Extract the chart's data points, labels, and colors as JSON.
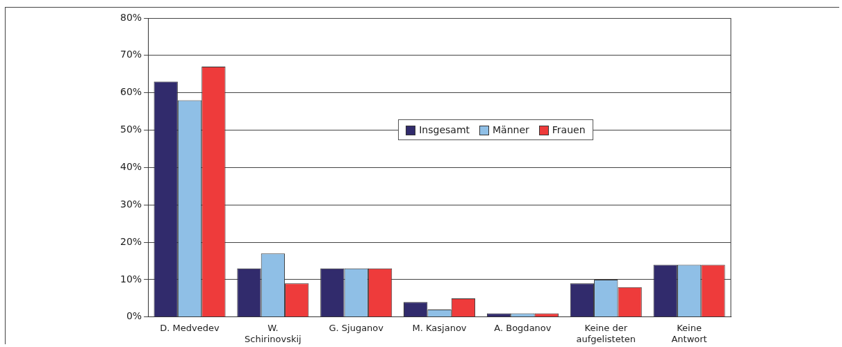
{
  "chart_data": {
    "type": "bar",
    "categories": [
      "D. Medvedev",
      "W.\nSchirinovskij",
      "G. Sjuganov",
      "M. Kasjanov",
      "A. Bogdanov",
      "Keine der\naufgelisteten",
      "Keine\nAntwort"
    ],
    "series": [
      {
        "name": "Insgesamt",
        "color": "#312b6c",
        "values": [
          63,
          13,
          13,
          4,
          1,
          9,
          14
        ]
      },
      {
        "name": "Männer",
        "color": "#8fbfe6",
        "values": [
          58,
          17,
          13,
          2,
          1,
          10,
          14
        ]
      },
      {
        "name": "Frauen",
        "color": "#ee3b3b",
        "values": [
          67,
          9,
          13,
          5,
          1,
          8,
          14
        ]
      }
    ],
    "ylim": [
      0,
      80
    ],
    "yticks": [
      {
        "value": 0,
        "label": "0%"
      },
      {
        "value": 10,
        "label": "10%"
      },
      {
        "value": 20,
        "label": "20%"
      },
      {
        "value": 30,
        "label": "30%"
      },
      {
        "value": 40,
        "label": "40%"
      },
      {
        "value": 50,
        "label": "50%"
      },
      {
        "value": 60,
        "label": "60%"
      },
      {
        "value": 70,
        "label": "70%"
      },
      {
        "value": 80,
        "label": "80%"
      }
    ],
    "grid": "y",
    "legend": "top"
  }
}
